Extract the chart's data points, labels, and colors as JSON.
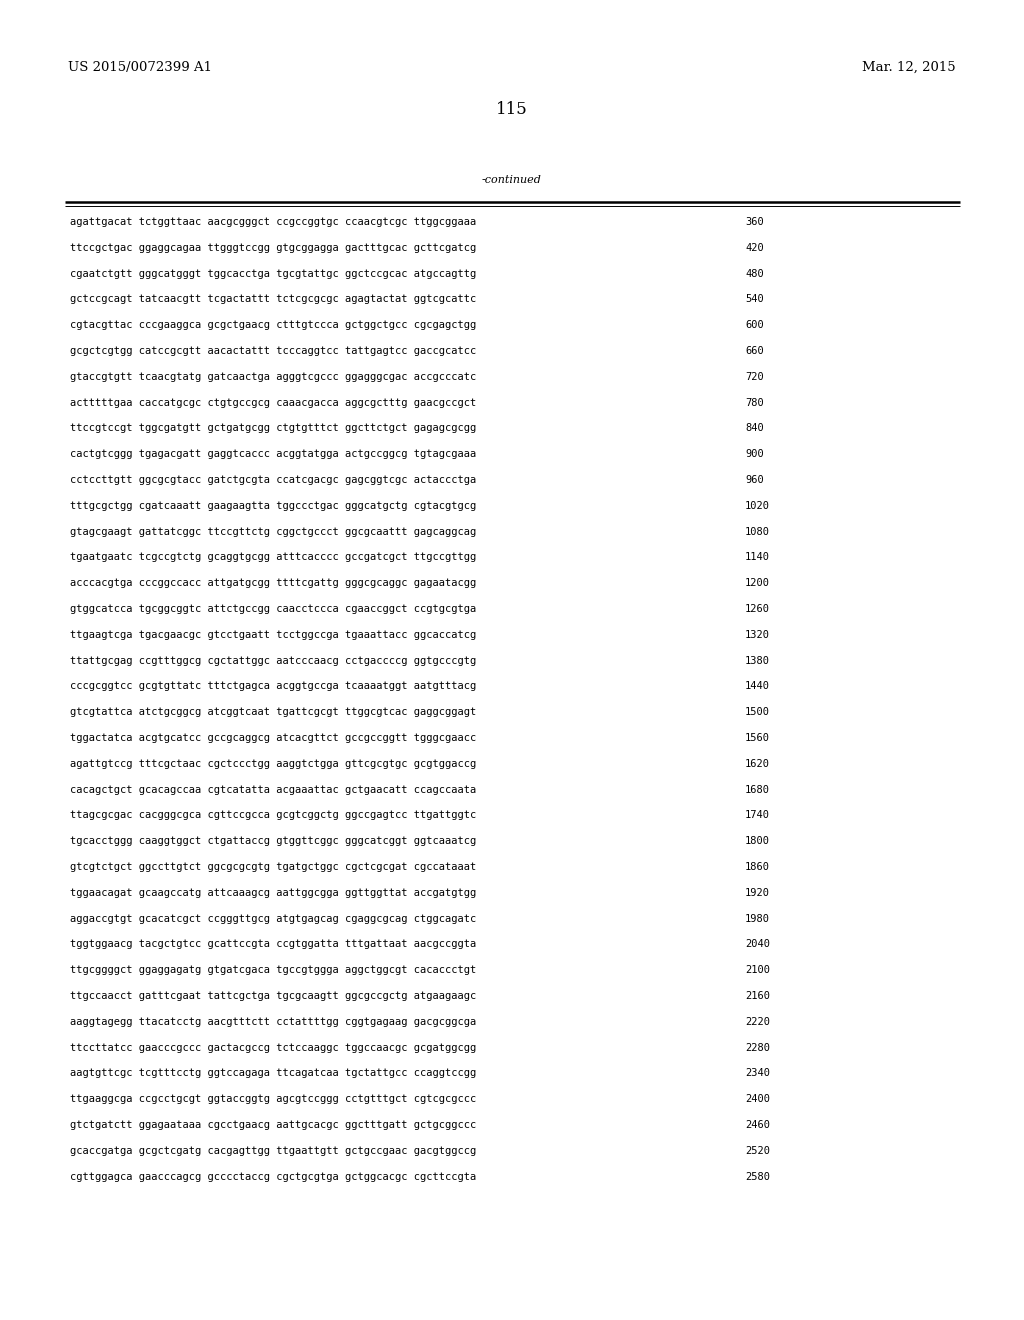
{
  "patent_number": "US 2015/0072399 A1",
  "patent_date": "Mar. 12, 2015",
  "page_number": "115",
  "continued_label": "-continued",
  "background_color": "#ffffff",
  "text_color": "#000000",
  "seq_font_size": 7.5,
  "header_font_size": 9.5,
  "page_num_font_size": 12,
  "rows": [
    [
      "agattgacat tctggttaac aacgcgggct ccgccggtgc ccaacgtcgc ttggcggaaa",
      "360"
    ],
    [
      "ttccgctgac ggaggcagaa ttgggtccgg gtgcggagga gactttgcac gcttcgatcg",
      "420"
    ],
    [
      "cgaatctgtt gggcatgggt tggcacctga tgcgtattgc ggctccgcac atgccagttg",
      "480"
    ],
    [
      "gctccgcagt tatcaacgtt tcgactattt tctcgcgcgc agagtactat ggtcgcattc",
      "540"
    ],
    [
      "cgtacgttac cccgaaggca gcgctgaacg ctttgtccca gctggctgcc cgcgagctgg",
      "600"
    ],
    [
      "gcgctcgtgg catccgcgtt aacactattt tcccaggtcc tattgagtcc gaccgcatcc",
      "660"
    ],
    [
      "gtaccgtgtt tcaacgtatg gatcaactga agggtcgccc ggagggcgac accgcccatc",
      "720"
    ],
    [
      "actttttgaa caccatgcgc ctgtgccgcg caaacgacca aggcgctttg gaacgccgct",
      "780"
    ],
    [
      "ttccgtccgt tggcgatgtt gctgatgcgg ctgtgtttct ggcttctgct gagagcgcgg",
      "840"
    ],
    [
      "cactgtcggg tgagacgatt gaggtcaccc acggtatgga actgccggcg tgtagcgaaa",
      "900"
    ],
    [
      "cctccttgtt ggcgcgtacc gatctgcgta ccatcgacgc gagcggtcgc actaccctga",
      "960"
    ],
    [
      "tttgcgctgg cgatcaaatt gaagaagtta tggccctgac gggcatgctg cgtacgtgcg",
      "1020"
    ],
    [
      "gtagcgaagt gattatcggc ttccgttctg cggctgccct ggcgcaattt gagcaggcag",
      "1080"
    ],
    [
      "tgaatgaatc tcgccgtctg gcaggtgcgg atttcacccc gccgatcgct ttgccgttgg",
      "1140"
    ],
    [
      "acccacgtga cccggccacc attgatgcgg ttttcgattg gggcgcaggc gagaatacgg",
      "1200"
    ],
    [
      "gtggcatcca tgcggcggtc attctgccgg caacctccca cgaaccggct ccgtgcgtga",
      "1260"
    ],
    [
      "ttgaagtcga tgacgaacgc gtcctgaatt tcctggccga tgaaattacc ggcaccatcg",
      "1320"
    ],
    [
      "ttattgcgag ccgtttggcg cgctattggc aatcccaacg cctgaccccg ggtgcccgtg",
      "1380"
    ],
    [
      "cccgcggtcc gcgtgttatc tttctgagca acggtgccga tcaaaatggt aatgtttacg",
      "1440"
    ],
    [
      "gtcgtattca atctgcggcg atcggtcaat tgattcgcgt ttggcgtcac gaggcggagt",
      "1500"
    ],
    [
      "tggactatca acgtgcatcc gccgcaggcg atcacgttct gccgccggtt tgggcgaacc",
      "1560"
    ],
    [
      "agattgtccg tttcgctaac cgctccctgg aaggtctgga gttcgcgtgc gcgtggaccg",
      "1620"
    ],
    [
      "cacagctgct gcacagccaa cgtcatatta acgaaattac gctgaacatt ccagccaata",
      "1680"
    ],
    [
      "ttagcgcgac cacgggcgca cgttccgcca gcgtcggctg ggccgagtcc ttgattggtc",
      "1740"
    ],
    [
      "tgcacctggg caaggtggct ctgattaccg gtggttcggc gggcatcggt ggtcaaatcg",
      "1800"
    ],
    [
      "gtcgtctgct ggccttgtct ggcgcgcgtg tgatgctggc cgctcgcgat cgccataaat",
      "1860"
    ],
    [
      "tggaacagat gcaagccatg attcaaagcg aattggcgga ggttggttat accgatgtgg",
      "1920"
    ],
    [
      "aggaccgtgt gcacatcgct ccgggttgcg atgtgagcag cgaggcgcag ctggcagatc",
      "1980"
    ],
    [
      "tggtggaacg tacgctgtcc gcattccgta ccgtggatta tttgattaat aacgccggta",
      "2040"
    ],
    [
      "ttgcggggct ggaggagatg gtgatcgaca tgccgtggga aggctggcgt cacaccctgt",
      "2100"
    ],
    [
      "ttgccaacct gatttcgaat tattcgctga tgcgcaagtt ggcgccgctg atgaagaagc",
      "2160"
    ],
    [
      "aaggtagegg ttacatcctg aacgtttctt cctattttgg cggtgagaag gacgcggcga",
      "2220"
    ],
    [
      "ttccttatcc gaacccgccc gactacgccg tctccaaggc tggccaacgc gcgatggcgg",
      "2280"
    ],
    [
      "aagtgttcgc tcgtttcctg ggtccagaga ttcagatcaa tgctattgcc ccaggtccgg",
      "2340"
    ],
    [
      "ttgaaggcga ccgcctgcgt ggtaccggtg agcgtccggg cctgtttgct cgtcgcgccc",
      "2400"
    ],
    [
      "gtctgatctt ggagaataaa cgcctgaacg aattgcacgc ggctttgatt gctgcggccc",
      "2460"
    ],
    [
      "gcaccgatga gcgctcgatg cacgagttgg ttgaattgtt gctgccgaac gacgtggccg",
      "2520"
    ],
    [
      "cgttggagca gaacccagcg gcccctaccg cgctgcgtga gctggcacgc cgcttccgta",
      "2580"
    ]
  ]
}
